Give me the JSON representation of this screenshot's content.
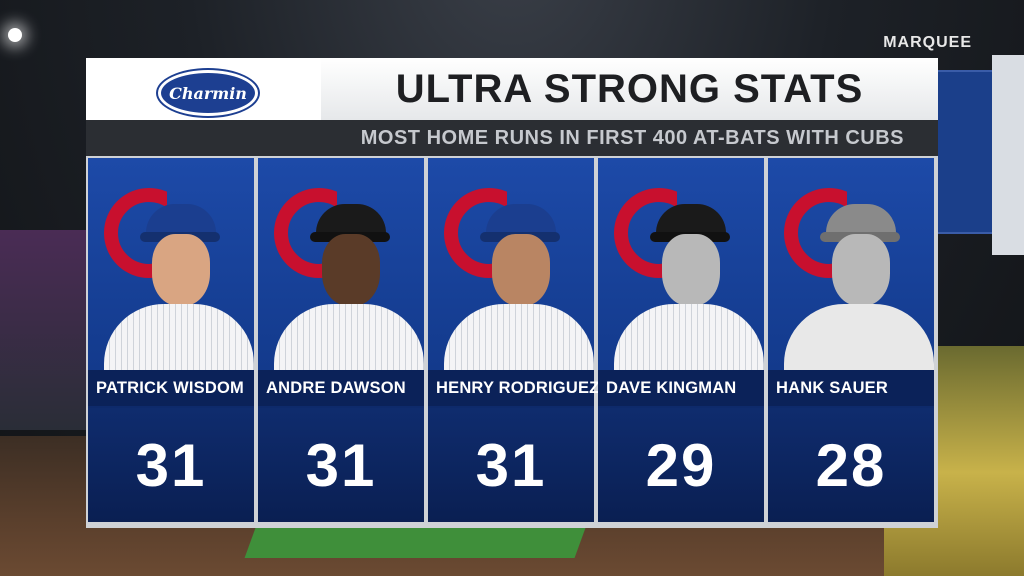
{
  "broadcast": {
    "network": "MARQUEE"
  },
  "sponsor": {
    "name": "Charmin",
    "color": "#1d3f91"
  },
  "header": {
    "title": "ULTRA STRONG STATS",
    "subtitle": "MOST HOME RUNS IN FIRST 400 AT-BATS WITH CUBS"
  },
  "colors": {
    "card_blue": "#0e2a6b",
    "cubs_red": "#c8102e",
    "title_text": "#1e1f22"
  },
  "players": [
    {
      "name": "PATRICK WISDOM",
      "home_runs": "31",
      "photo": "color"
    },
    {
      "name": "ANDRE DAWSON",
      "home_runs": "31",
      "photo": "bw"
    },
    {
      "name": "HENRY RODRIGUEZ",
      "home_runs": "31",
      "photo": "color"
    },
    {
      "name": "DAVE KINGMAN",
      "home_runs": "29",
      "photo": "bw"
    },
    {
      "name": "HANK SAUER",
      "home_runs": "28",
      "photo": "bw"
    }
  ]
}
